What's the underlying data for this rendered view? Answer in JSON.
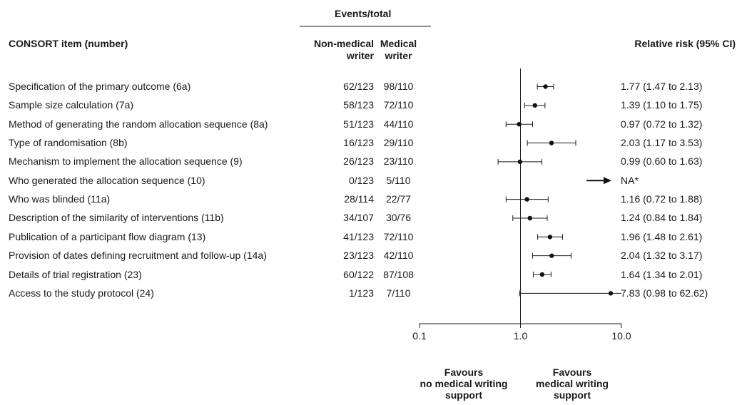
{
  "header": {
    "events_total": "Events/total",
    "item_col": "CONSORT item (number)",
    "nonmedical_col": [
      "Non-medical",
      "writer"
    ],
    "medical_col": [
      "Medical",
      "writer"
    ],
    "rr_col": "Relative risk (95% CI)"
  },
  "favours": {
    "left": [
      "Favours",
      "no medical writing",
      "support"
    ],
    "right": [
      "Favours",
      "medical writing",
      "support"
    ]
  },
  "na_label": "NA*",
  "chart_data": {
    "type": "forest",
    "x_scale": "log",
    "xlim": [
      0.1,
      10.0
    ],
    "xticks": [
      "0.1",
      "1.0",
      "10.0"
    ],
    "xtick_values": [
      0.1,
      1.0,
      10.0
    ],
    "reference_line": 1.0,
    "rows": [
      {
        "item": "Specification of the primary outcome (6a)",
        "non_medical": "62/123",
        "medical": "98/110",
        "rr": 1.77,
        "lo": 1.47,
        "hi": 2.13,
        "label": "1.77 (1.47 to 2.13)"
      },
      {
        "item": "Sample size calculation (7a)",
        "non_medical": "58/123",
        "medical": "72/110",
        "rr": 1.39,
        "lo": 1.1,
        "hi": 1.75,
        "label": "1.39 (1.10 to 1.75)"
      },
      {
        "item": "Method of generating the random allocation sequence (8a)",
        "non_medical": "51/123",
        "medical": "44/110",
        "rr": 0.97,
        "lo": 0.72,
        "hi": 1.32,
        "label": "0.97 (0.72 to 1.32)"
      },
      {
        "item": "Type of randomisation (8b)",
        "non_medical": "16/123",
        "medical": "29/110",
        "rr": 2.03,
        "lo": 1.17,
        "hi": 3.53,
        "label": "2.03 (1.17 to 3.53)"
      },
      {
        "item": "Mechanism to implement the allocation sequence (9)",
        "non_medical": "26/123",
        "medical": "23/110",
        "rr": 0.99,
        "lo": 0.6,
        "hi": 1.63,
        "label": "0.99 (0.60 to 1.63)"
      },
      {
        "item": "Who generated the allocation sequence (10)",
        "non_medical": "0/123",
        "medical": "5/110",
        "rr": null,
        "lo": null,
        "hi": null,
        "label": "NA*"
      },
      {
        "item": "Who was blinded (11a)",
        "non_medical": "28/114",
        "medical": "22/77",
        "rr": 1.16,
        "lo": 0.72,
        "hi": 1.88,
        "label": "1.16 (0.72 to 1.88)"
      },
      {
        "item": "Description of the similarity of interventions (11b)",
        "non_medical": "34/107",
        "medical": "30/76",
        "rr": 1.24,
        "lo": 0.84,
        "hi": 1.84,
        "label": "1.24 (0.84 to 1.84)"
      },
      {
        "item": "Publication of a participant flow diagram (13)",
        "non_medical": "41/123",
        "medical": "72/110",
        "rr": 1.96,
        "lo": 1.48,
        "hi": 2.61,
        "label": "1.96 (1.48 to 2.61)"
      },
      {
        "item": "Provision of dates defining recruitment and follow-up (14a)",
        "non_medical": "23/123",
        "medical": "42/110",
        "rr": 2.04,
        "lo": 1.32,
        "hi": 3.17,
        "label": "2.04 (1.32 to 3.17)"
      },
      {
        "item": "Details of trial registration (23)",
        "non_medical": "60/122",
        "medical": "87/108",
        "rr": 1.64,
        "lo": 1.34,
        "hi": 2.01,
        "label": "1.64 (1.34 to 2.01)"
      },
      {
        "item": "Access to the study protocol (24)",
        "non_medical": "1/123",
        "medical": "7/110",
        "rr": 7.83,
        "lo": 0.98,
        "hi": 62.62,
        "label": "7.83 (0.98 to 62.62)"
      }
    ]
  }
}
